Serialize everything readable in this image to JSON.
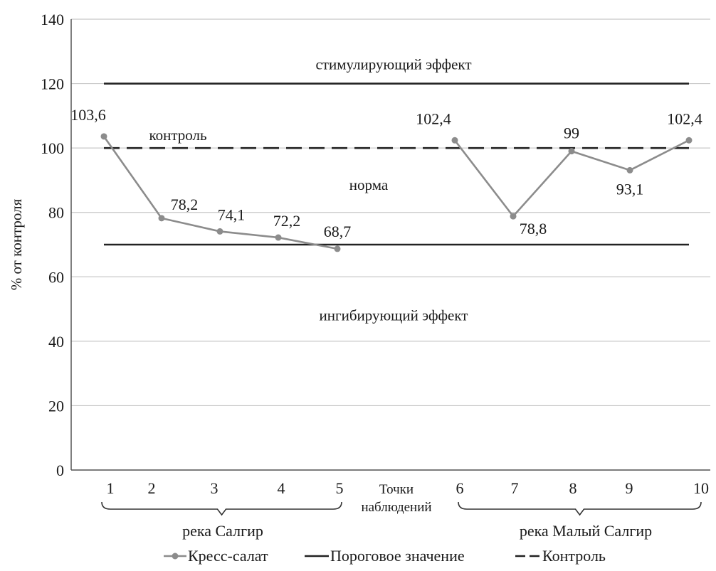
{
  "chart_data": {
    "type": "line",
    "ylabel": "% от контроля",
    "xlabel": "Точки наблюдений",
    "xlabel_lines": [
      "Точки",
      "наблюдений"
    ],
    "ylim": [
      0,
      140
    ],
    "yticks": [
      0,
      20,
      40,
      60,
      80,
      100,
      120,
      140
    ],
    "grid": "horizontal",
    "legend_position": "bottom",
    "colors": {
      "series": "#8c8c8c",
      "threshold": "#222222",
      "control": "#222222",
      "grid": "#c8c8c8"
    },
    "x_tick_labels": [
      "1",
      "2",
      "3",
      "4",
      "5",
      "6",
      "7",
      "8",
      "9",
      "10"
    ],
    "series": [
      {
        "name": "Кресс-салат",
        "segments": [
          {
            "x": [
              1,
              2,
              3,
              4,
              5
            ],
            "values": [
              103.6,
              78.2,
              74.1,
              72.2,
              68.7
            ],
            "labels": [
              "103,6",
              "78,2",
              "74,1",
              "72,2",
              "68,7"
            ]
          },
          {
            "x": [
              6,
              7,
              8,
              9,
              10
            ],
            "values": [
              102.4,
              78.8,
              99,
              93.1,
              102.4
            ],
            "labels": [
              "102,4",
              "78,8",
              "99",
              "93,1",
              "102,4"
            ]
          }
        ]
      }
    ],
    "reference_lines": [
      {
        "name": "Пороговое значение",
        "values": [
          120,
          70
        ],
        "style": "solid"
      },
      {
        "name": "Контроль",
        "values": [
          100
        ],
        "style": "dashed"
      }
    ],
    "annotations": [
      {
        "text": "стимулирующий эффект",
        "y": 126
      },
      {
        "text": "контроль",
        "y": 104
      },
      {
        "text": "норма",
        "y": 88.5
      },
      {
        "text": "ингибирующий эффект",
        "y": 48
      }
    ],
    "groups": [
      {
        "label": "река Салгир",
        "from": 1,
        "to": 5
      },
      {
        "label": "река Малый Салгир",
        "from": 6,
        "to": 10
      }
    ],
    "legend": [
      "Кресс-салат",
      "Пороговое значение",
      "Контроль"
    ]
  }
}
